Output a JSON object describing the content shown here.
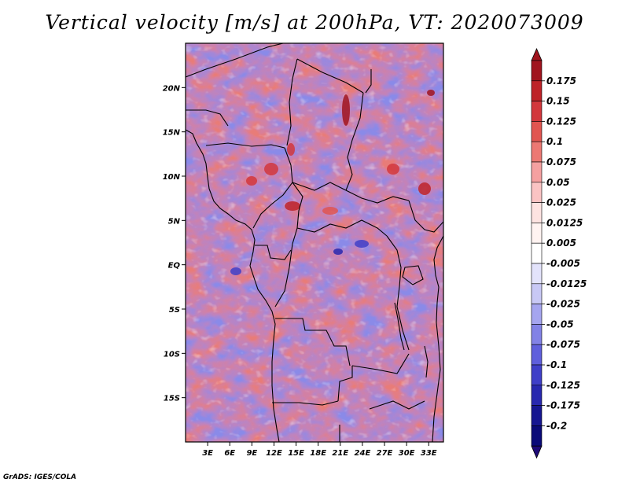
{
  "title": "Vertical velocity [m/s] at 200hPa, VT: 2020073009",
  "credit": "GrADS: IGES/COLA",
  "lat_axis": {
    "range": [
      -20,
      25
    ],
    "ticks": [
      {
        "value": 20,
        "label": "20N"
      },
      {
        "value": 15,
        "label": "15N"
      },
      {
        "value": 10,
        "label": "10N"
      },
      {
        "value": 5,
        "label": "5N"
      },
      {
        "value": 0,
        "label": "EQ"
      },
      {
        "value": -5,
        "label": "5S"
      },
      {
        "value": -10,
        "label": "10S"
      },
      {
        "value": -15,
        "label": "15S"
      }
    ]
  },
  "lon_axis": {
    "range": [
      0,
      35
    ],
    "ticks": [
      {
        "value": 3,
        "label": "3E"
      },
      {
        "value": 6,
        "label": "6E"
      },
      {
        "value": 9,
        "label": "9E"
      },
      {
        "value": 12,
        "label": "12E"
      },
      {
        "value": 15,
        "label": "15E"
      },
      {
        "value": 18,
        "label": "18E"
      },
      {
        "value": 21,
        "label": "21E"
      },
      {
        "value": 24,
        "label": "24E"
      },
      {
        "value": 27,
        "label": "27E"
      },
      {
        "value": 30,
        "label": "30E"
      },
      {
        "value": 33,
        "label": "33E"
      }
    ]
  },
  "colorbar": {
    "labels": [
      "0.175",
      "0.15",
      "0.125",
      "0.1",
      "0.075",
      "0.05",
      "0.025",
      "0.0125",
      "0.005",
      "-0.005",
      "-0.0125",
      "-0.025",
      "-0.05",
      "-0.075",
      "-0.1",
      "-0.125",
      "-0.175",
      "-0.2"
    ],
    "colors": [
      "#a0141e",
      "#be2328",
      "#d2373c",
      "#e15550",
      "#ec7873",
      "#f5a0a0",
      "#fac3c3",
      "#fde3e1",
      "#fff3f1",
      "#ffffff",
      "#e3e3fb",
      "#c8c8f5",
      "#a5a5ef",
      "#8282e6",
      "#5f5fdc",
      "#3f3fc8",
      "#2828af",
      "#161691",
      "#0a0a78"
    ],
    "top_arrow_color": "#a0141e",
    "bottom_arrow_color": "#1e0a78"
  }
}
